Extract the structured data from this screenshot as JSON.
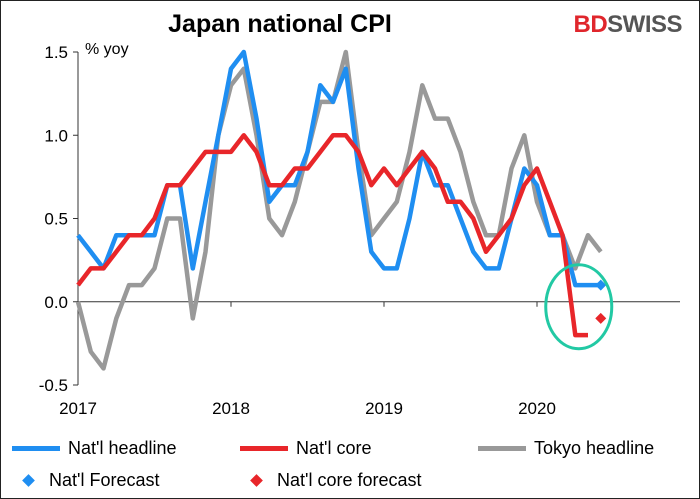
{
  "title": "Japan national CPI",
  "logo": {
    "part1": "BD",
    "part2": "SWISS"
  },
  "chart_data": {
    "type": "line",
    "ylabel": "% yoy",
    "ylim": [
      -0.5,
      1.5
    ],
    "yticks": [
      -0.5,
      0.0,
      0.5,
      1.0,
      1.5
    ],
    "ytick_labels": [
      "-0.5",
      "0.0",
      "0.5",
      "1.0",
      "1.5"
    ],
    "x_start": "2017-01",
    "x_end": "2020-07",
    "xtick_labels": [
      "2017",
      "2018",
      "2019",
      "2020"
    ],
    "series": [
      {
        "name": "Nat'l headline",
        "color": "#1f8ef1",
        "values": [
          0.4,
          0.3,
          0.2,
          0.4,
          0.4,
          0.4,
          0.4,
          0.7,
          0.7,
          0.2,
          0.6,
          1.0,
          1.4,
          1.5,
          1.1,
          0.6,
          0.7,
          0.7,
          0.9,
          1.3,
          1.2,
          1.4,
          0.8,
          0.3,
          0.2,
          0.2,
          0.5,
          0.9,
          0.7,
          0.7,
          0.5,
          0.3,
          0.2,
          0.2,
          0.5,
          0.8,
          0.7,
          0.4,
          0.4,
          0.1,
          0.1,
          0.1
        ]
      },
      {
        "name": "Nat'l core",
        "color": "#e8262a",
        "values": [
          0.1,
          0.2,
          0.2,
          0.3,
          0.4,
          0.4,
          0.5,
          0.7,
          0.7,
          0.8,
          0.9,
          0.9,
          0.9,
          1.0,
          0.9,
          0.7,
          0.7,
          0.8,
          0.8,
          0.9,
          1.0,
          1.0,
          0.9,
          0.7,
          0.8,
          0.7,
          0.8,
          0.9,
          0.8,
          0.6,
          0.6,
          0.5,
          0.3,
          0.4,
          0.5,
          0.7,
          0.8,
          0.6,
          0.4,
          -0.2,
          -0.2
        ]
      },
      {
        "name": "Tokyo headline",
        "color": "#999999",
        "values": [
          0.0,
          -0.3,
          -0.4,
          -0.1,
          0.1,
          0.1,
          0.2,
          0.5,
          0.5,
          -0.1,
          0.3,
          1.0,
          1.3,
          1.4,
          1.0,
          0.5,
          0.4,
          0.6,
          0.9,
          1.2,
          1.2,
          1.5,
          0.9,
          0.4,
          0.5,
          0.6,
          0.9,
          1.3,
          1.1,
          1.1,
          0.9,
          0.6,
          0.4,
          0.4,
          0.8,
          1.0,
          0.6,
          0.4,
          0.4,
          0.2,
          0.4,
          0.3
        ]
      }
    ],
    "forecasts": [
      {
        "name": "Nat'l Forecast",
        "color": "#1f8ef1",
        "x_index": 41,
        "value": 0.1
      },
      {
        "name": "Nat'l core forecast",
        "color": "#e8262a",
        "x_index": 41,
        "value": -0.1
      }
    ],
    "annotation": {
      "shape": "circle",
      "color": "#22c9a4",
      "around": "forecasts"
    },
    "legend": "bottom",
    "grid": false
  }
}
